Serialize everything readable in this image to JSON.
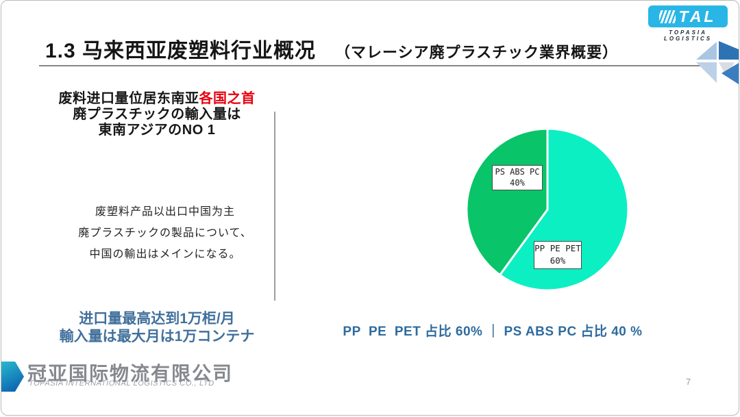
{
  "slide": {
    "title_cn": "1.3 马来西亚废塑料行业概况",
    "title_jp": "（マレーシア廃プラスチック業界概要）",
    "page_number": "7"
  },
  "tal_logo": {
    "word": "TAL",
    "tagline": "TOPASIA LOGISTICS",
    "brand_color": "#29b6e6"
  },
  "left_panel": {
    "headline_cn_black": "废料进口量位居东南亚",
    "headline_cn_red": "各国之首",
    "headline_jp_line1": "廃プラスチックの輸入量は",
    "headline_jp_line2": "東南アジアのNO 1",
    "body_lines": [
      "废塑料产品以出口中国为主",
      "廃プラスチックの製品について、",
      "中国の輸出はメインになる。"
    ],
    "highlight_line1": "进口量最高达到1万柜/月",
    "highlight_line2": "輸入量は最大月は1万コンテナ",
    "highlight_color": "#41709b",
    "red_color": "#e8000e"
  },
  "chart_data": {
    "type": "pie",
    "title": "",
    "start_angle_deg": 0,
    "direction": "clockwise",
    "legend_position": "none",
    "labels_inside": true,
    "slices": [
      {
        "label": "PP PE PET",
        "value": 60,
        "percent_label": "60%",
        "color": "#0CEFC3"
      },
      {
        "label": "PS ABS PC",
        "value": 40,
        "percent_label": "40%",
        "color": "#09C468"
      }
    ],
    "caption": "PP  PE  PET 占比 60% ｜ PS ABS PC 占比 40 %"
  },
  "footer": {
    "company_cn": "冠亚国际物流有限公司",
    "company_en": "TOPASIA INTERNATIONAL LOGISTICS CO., LTD"
  }
}
